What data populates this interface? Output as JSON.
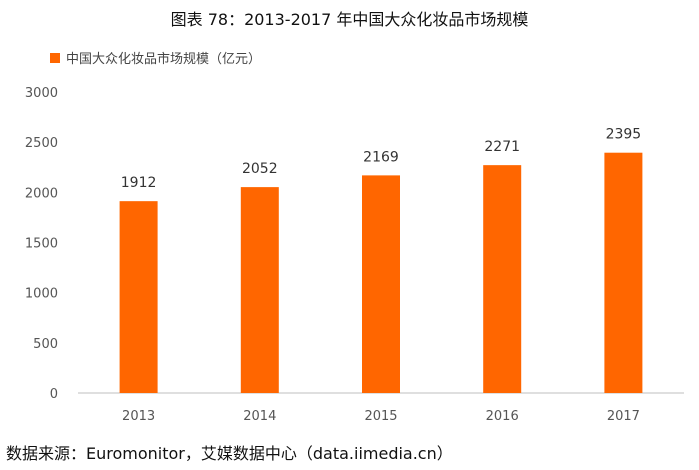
{
  "figure": {
    "title": "图表 78：2013-2017 年中国大众化妆品市场规模",
    "source": "数据来源：Euromonitor，艾媒数据中心（data.iimedia.cn）"
  },
  "colors": {
    "bar": "#ff6600",
    "axis": "#bfbfbf",
    "tick_text": "#555555",
    "data_label": "#333333"
  },
  "chart_data": {
    "type": "bar",
    "categories": [
      "2013",
      "2014",
      "2015",
      "2016",
      "2017"
    ],
    "series": [
      {
        "name": "中国大众化妆品市场规模（亿元）",
        "values": [
          1912,
          2052,
          2169,
          2271,
          2395
        ]
      }
    ],
    "ylim": [
      0,
      3000
    ],
    "yticks": [
      0,
      500,
      1000,
      1500,
      2000,
      2500,
      3000
    ],
    "xlabel": "",
    "ylabel": "",
    "grid": false,
    "legend": "top-left",
    "data_labels": true
  }
}
